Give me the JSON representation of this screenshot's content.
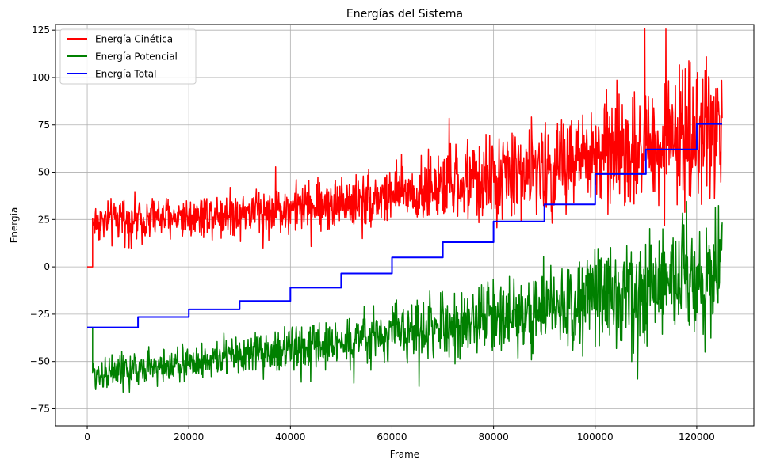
{
  "chart_data": {
    "type": "line",
    "title": "Energías del Sistema",
    "xlabel": "Frame",
    "ylabel": "Energía",
    "xlim": [
      -6250,
      131250
    ],
    "ylim": [
      -84,
      128
    ],
    "xticks": [
      0,
      20000,
      40000,
      60000,
      80000,
      100000,
      120000
    ],
    "yticks": [
      -75,
      -50,
      -25,
      0,
      25,
      50,
      75,
      100,
      125
    ],
    "grid": true,
    "legend_position": "upper-left",
    "series": [
      {
        "name": "Energía Cinética",
        "color": "#ff0000",
        "style": "noisy-band",
        "x": [
          0,
          1000,
          1050,
          2000,
          10000,
          20000,
          30000,
          40000,
          50000,
          60000,
          70000,
          80000,
          90000,
          100000,
          110000,
          120000,
          125000
        ],
        "center": [
          0,
          0,
          24,
          24,
          25,
          27,
          29,
          31,
          34,
          38,
          42,
          47,
          52,
          58,
          65,
          72,
          76
        ],
        "spread": [
          0,
          0,
          6,
          7,
          7,
          7,
          8,
          8,
          9,
          10,
          12,
          14,
          16,
          18,
          20,
          22,
          23
        ],
        "noise_start": 1050,
        "noise_end": 125000,
        "noise_points": 1400
      },
      {
        "name": "Energía Potencial",
        "color": "#008000",
        "style": "noisy-band",
        "x": [
          0,
          1000,
          1050,
          2000,
          10000,
          20000,
          30000,
          40000,
          50000,
          60000,
          70000,
          80000,
          90000,
          100000,
          110000,
          120000,
          125000
        ],
        "center": [
          -32,
          -32,
          -57,
          -56,
          -54,
          -51,
          -47,
          -44,
          -40,
          -35,
          -31,
          -27,
          -23,
          -17,
          -11,
          -5,
          -2
        ],
        "spread": [
          0,
          0,
          6,
          6,
          6,
          6,
          7,
          7,
          8,
          9,
          10,
          12,
          14,
          16,
          18,
          20,
          21
        ],
        "noise_start": 1050,
        "noise_end": 125000,
        "noise_points": 1400
      },
      {
        "name": "Energía Total",
        "color": "#0000ff",
        "style": "step",
        "x": [
          0,
          10000,
          20000,
          30000,
          40000,
          50000,
          60000,
          70000,
          80000,
          90000,
          100000,
          110000,
          120000,
          125000
        ],
        "y": [
          -32,
          -26.5,
          -22.5,
          -18,
          -11,
          -3.5,
          5,
          13,
          24,
          33,
          49,
          62,
          75.5,
          75.5
        ]
      }
    ]
  }
}
